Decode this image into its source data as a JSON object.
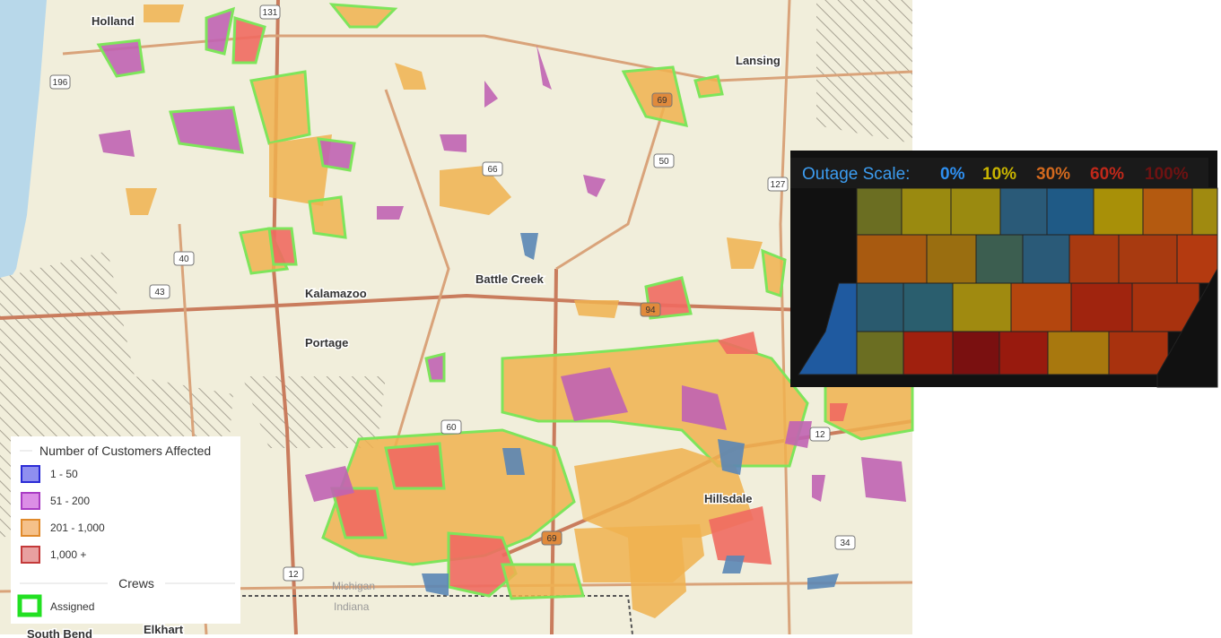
{
  "map": {
    "places": [
      "Holland",
      "Lansing",
      "Kalamazoo",
      "Portage",
      "Battle Creek",
      "Hillsdale",
      "Michigan",
      "Indiana",
      "Elkhart",
      "South Bend"
    ],
    "routes": [
      "131",
      "196",
      "69",
      "66",
      "50",
      "127",
      "40",
      "43",
      "94",
      "60",
      "12",
      "69",
      "34",
      "12"
    ]
  },
  "legend": {
    "title": "Number of Customers Affected",
    "items": [
      "1 - 50",
      "51 - 200",
      "201 - 1,000",
      "1,000 +"
    ],
    "crews_title": "Crews",
    "crews_items": [
      "Assigned"
    ]
  },
  "inset": {
    "title": "Outage Scale:",
    "levels": [
      "0%",
      "10%",
      "30%",
      "60%",
      "100%"
    ]
  }
}
